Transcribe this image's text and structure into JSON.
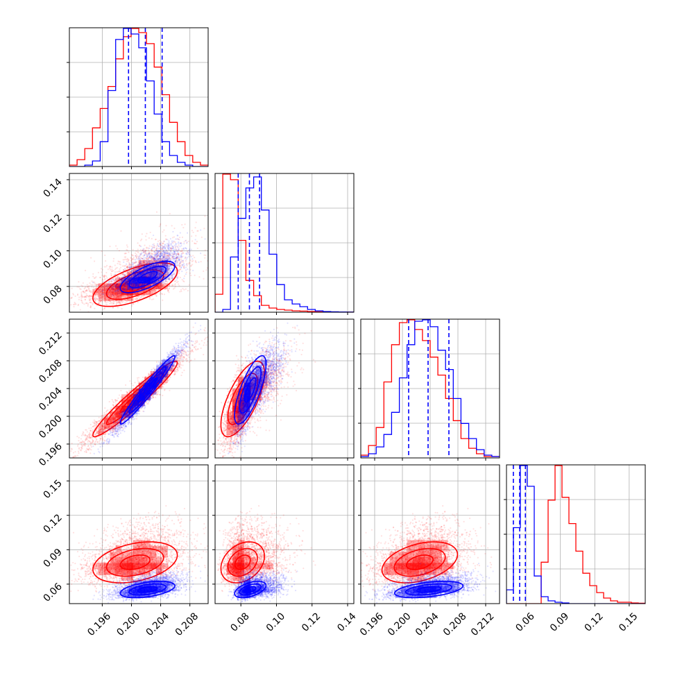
{
  "colors": {
    "red": "#ff0000",
    "blue": "#0000ff",
    "grid": "#b0b0b0"
  },
  "chart_data": {
    "type": "corner",
    "grid": true,
    "params": [
      {
        "range": [
          0.1915,
          0.2105
        ],
        "ticks": [
          0.196,
          0.2,
          0.204,
          0.208
        ],
        "tick_labels": [
          "0.196",
          "0.200",
          "0.204",
          "0.208"
        ]
      },
      {
        "range": [
          0.0655,
          0.1435
        ],
        "ticks": [
          0.08,
          0.1,
          0.12,
          0.14
        ],
        "tick_labels": [
          "0.08",
          "0.10",
          "0.12",
          "0.14"
        ]
      },
      {
        "range": [
          0.194,
          0.214
        ],
        "ticks": [
          0.196,
          0.2,
          0.204,
          0.208,
          0.212
        ],
        "tick_labels": [
          "0.196",
          "0.200",
          "0.204",
          "0.208",
          "0.212"
        ]
      },
      {
        "range": [
          0.043,
          0.164
        ],
        "ticks": [
          0.06,
          0.09,
          0.12,
          0.15
        ],
        "tick_labels": [
          "0.06",
          "0.09",
          "0.12",
          "0.15"
        ]
      }
    ],
    "series": [
      {
        "color": "red",
        "mean": [
          0.2005,
          0.081,
          0.2025,
          0.079
        ],
        "std": [
          0.0034,
          0.0072,
          0.0032,
          0.0105
        ],
        "corr": [
          [
            1,
            0.62,
            0.96,
            0.35
          ],
          [
            0.62,
            1,
            0.68,
            0.3
          ],
          [
            0.96,
            0.68,
            1,
            0.38
          ],
          [
            0.35,
            0.3,
            0.38,
            1
          ]
        ],
        "hist": [
          [
            0.01,
            0.05,
            0.13,
            0.28,
            0.42,
            0.58,
            0.78,
            0.94,
            1.0,
            0.97,
            0.89,
            0.72,
            0.52,
            0.32,
            0.18,
            0.08,
            0.03,
            0.01
          ],
          [
            0.13,
            1.0,
            0.96,
            0.52,
            0.23,
            0.12,
            0.05,
            0.03,
            0.02,
            0.015,
            0.01,
            0.008,
            0.005,
            0.003,
            0.002,
            0.001,
            0.001,
            0.001
          ],
          [
            0.02,
            0.09,
            0.22,
            0.55,
            0.82,
            0.98,
            1.0,
            0.93,
            0.85,
            0.73,
            0.6,
            0.43,
            0.27,
            0.14,
            0.07,
            0.03,
            0.01,
            0.01
          ],
          [
            0,
            0,
            0,
            0,
            0,
            0.3,
            0.75,
            1.0,
            0.77,
            0.58,
            0.38,
            0.22,
            0.13,
            0.08,
            0.04,
            0.02,
            0.01,
            0.01,
            0.005,
            0.003
          ]
        ]
      },
      {
        "color": "blue",
        "mean": [
          0.2022,
          0.0853,
          0.2038,
          0.0553
        ],
        "std": [
          0.0022,
          0.0052,
          0.0029,
          0.0042
        ],
        "corr": [
          [
            1,
            0.7,
            0.97,
            0.45
          ],
          [
            0.7,
            1,
            0.75,
            0.5
          ],
          [
            0.97,
            0.75,
            1,
            0.45
          ],
          [
            0.45,
            0.5,
            0.45,
            1
          ]
        ],
        "hist": [
          [
            0,
            0,
            0.01,
            0.04,
            0.18,
            0.55,
            0.92,
            1.0,
            0.96,
            0.86,
            0.62,
            0.38,
            0.18,
            0.08,
            0.03,
            0.01,
            0,
            0
          ],
          [
            0,
            0.02,
            0.4,
            0.68,
            0.9,
            0.98,
            0.74,
            0.42,
            0.2,
            0.09,
            0.06,
            0.04,
            0.02,
            0.01,
            0.005,
            0.003,
            0.002,
            0.001
          ],
          [
            0.01,
            0.03,
            0.08,
            0.17,
            0.33,
            0.58,
            0.82,
            0.99,
            1.0,
            0.95,
            0.78,
            0.64,
            0.43,
            0.25,
            0.14,
            0.06,
            0.02,
            0.01
          ],
          [
            0.1,
            0.55,
            1.0,
            0.85,
            0.2,
            0.05,
            0.02,
            0.01,
            0.005,
            0,
            0,
            0,
            0,
            0,
            0,
            0,
            0,
            0,
            0,
            0
          ]
        ]
      }
    ],
    "quantile_lines": [
      [
        0.1996,
        0.2019,
        0.2042
      ],
      [
        0.0785,
        0.0848,
        0.0905
      ],
      [
        0.2009,
        0.2037,
        0.2067
      ],
      [
        0.049,
        0.0545,
        0.0595
      ]
    ]
  }
}
